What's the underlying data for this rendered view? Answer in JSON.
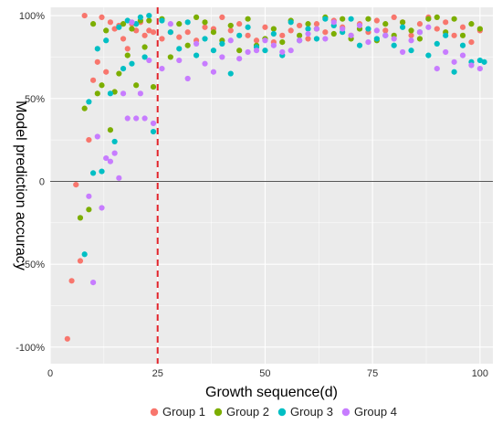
{
  "chart_data": {
    "type": "scatter",
    "xlabel": "Growth sequence(d)",
    "ylabel": "Model prediction accuracy",
    "xlim": [
      0,
      103
    ],
    "ylim": [
      -110,
      105
    ],
    "x_ticks": [
      0,
      25,
      50,
      75,
      100
    ],
    "x_tick_labels": [
      "0",
      "25",
      "50",
      "75",
      "100"
    ],
    "y_ticks": [
      100,
      50,
      0,
      -50,
      -100
    ],
    "y_tick_labels": [
      "100%",
      "50%",
      "0",
      "-50%",
      "-100%"
    ],
    "grid": true,
    "zero_line": 0,
    "reference_line": {
      "x": 25,
      "style": "dashed",
      "color": "#e3242b"
    },
    "legend_position": "bottom",
    "colors": {
      "panel": "#ebebeb",
      "grid": "#ffffff"
    },
    "series": [
      {
        "name": "Group 1",
        "color": "#f8766d",
        "x": [
          4,
          5,
          6,
          7,
          8,
          9,
          10,
          11,
          12,
          13,
          14,
          15,
          16,
          17,
          18,
          19,
          20,
          21,
          22,
          23,
          24,
          26,
          28,
          30,
          32,
          34,
          36,
          38,
          40,
          42,
          44,
          46,
          48,
          50,
          52,
          54,
          56,
          58,
          60,
          62,
          64,
          66,
          68,
          70,
          72,
          74,
          76,
          78,
          80,
          82,
          84,
          86,
          88,
          90,
          92,
          94,
          96,
          98,
          100
        ],
        "y": [
          -95,
          -60,
          -2,
          -48,
          100,
          25,
          61,
          72,
          99,
          66,
          96,
          92,
          94,
          86,
          80,
          95,
          91,
          96,
          88,
          91,
          90,
          86,
          90,
          87,
          90,
          85,
          93,
          92,
          99,
          91,
          95,
          88,
          85,
          93,
          84,
          88,
          91,
          94,
          86,
          95,
          90,
          97,
          93,
          88,
          95,
          90,
          97,
          91,
          99,
          96,
          88,
          95,
          99,
          92,
          96,
          88,
          93,
          84,
          91
        ]
      },
      {
        "name": "Group 2",
        "color": "#7cae00",
        "x": [
          7,
          8,
          9,
          10,
          11,
          12,
          13,
          14,
          15,
          16,
          17,
          18,
          19,
          20,
          21,
          22,
          23,
          24,
          26,
          28,
          30,
          32,
          34,
          36,
          38,
          40,
          42,
          44,
          46,
          48,
          50,
          52,
          54,
          56,
          58,
          60,
          62,
          64,
          66,
          68,
          70,
          72,
          74,
          76,
          78,
          80,
          82,
          84,
          86,
          88,
          90,
          92,
          94,
          96,
          98,
          100
        ],
        "y": [
          -22,
          44,
          -17,
          95,
          53,
          58,
          91,
          31,
          54,
          65,
          95,
          76,
          92,
          58,
          97,
          81,
          97,
          57,
          98,
          75,
          95,
          82,
          99,
          96,
          90,
          85,
          94,
          79,
          98,
          82,
          86,
          92,
          84,
          97,
          88,
          95,
          92,
          99,
          89,
          98,
          86,
          92,
          98,
          85,
          95,
          88,
          96,
          91,
          86,
          98,
          99,
          90,
          98,
          88,
          95,
          92
        ]
      },
      {
        "name": "Group 3",
        "color": "#00bfc4",
        "x": [
          8,
          9,
          10,
          11,
          12,
          13,
          14,
          15,
          16,
          17,
          18,
          19,
          20,
          21,
          22,
          23,
          24,
          26,
          28,
          30,
          32,
          34,
          36,
          38,
          40,
          42,
          44,
          46,
          48,
          50,
          52,
          54,
          56,
          58,
          60,
          62,
          64,
          66,
          68,
          70,
          72,
          74,
          76,
          78,
          80,
          82,
          84,
          86,
          88,
          90,
          92,
          94,
          96,
          98,
          100,
          101
        ],
        "y": [
          -44,
          48,
          5,
          80,
          6,
          85,
          53,
          24,
          93,
          68,
          97,
          71,
          95,
          99,
          75,
          100,
          30,
          97,
          90,
          80,
          96,
          76,
          86,
          79,
          83,
          65,
          88,
          93,
          81,
          79,
          89,
          76,
          96,
          85,
          92,
          86,
          98,
          94,
          90,
          98,
          82,
          92,
          86,
          88,
          82,
          93,
          79,
          90,
          76,
          83,
          88,
          66,
          82,
          72,
          73,
          72
        ]
      },
      {
        "name": "Group 4",
        "color": "#c77cff",
        "x": [
          9,
          10,
          11,
          12,
          13,
          14,
          15,
          16,
          17,
          18,
          19,
          20,
          21,
          22,
          23,
          24,
          26,
          28,
          30,
          32,
          34,
          36,
          38,
          40,
          42,
          44,
          46,
          48,
          50,
          52,
          54,
          56,
          58,
          60,
          62,
          64,
          66,
          68,
          70,
          72,
          74,
          76,
          78,
          80,
          82,
          84,
          86,
          88,
          90,
          92,
          94,
          96,
          98,
          100
        ],
        "y": [
          -9,
          -61,
          27,
          -16,
          14,
          12,
          17,
          2,
          53,
          38,
          96,
          38,
          53,
          38,
          73,
          35,
          68,
          95,
          73,
          62,
          83,
          71,
          66,
          75,
          85,
          74,
          78,
          79,
          85,
          82,
          78,
          79,
          85,
          89,
          92,
          86,
          96,
          92,
          88,
          94,
          84,
          91,
          88,
          86,
          78,
          85,
          90,
          93,
          68,
          78,
          72,
          76,
          70,
          68
        ]
      }
    ]
  }
}
